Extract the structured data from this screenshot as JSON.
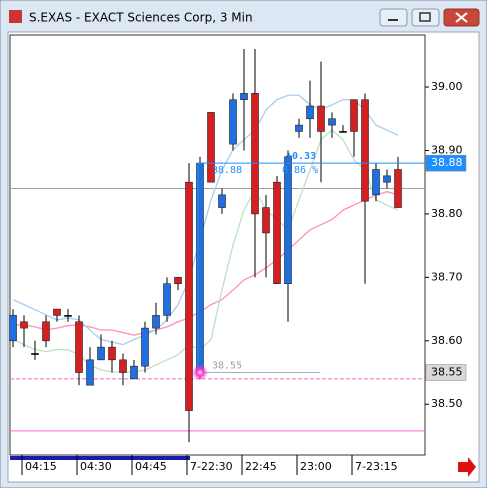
{
  "chart_data": {
    "type": "candlestick",
    "title": "S.EXAS - EXACT Sciences Corp, 3 Min",
    "categories": [
      null,
      "04:15",
      null,
      null,
      null,
      null,
      "04:30",
      null,
      null,
      null,
      null,
      "04:45",
      null,
      null,
      null,
      null,
      "7-22:30",
      null,
      null,
      null,
      null,
      "22:45",
      null,
      null,
      null,
      null,
      "23:00",
      null,
      null,
      null,
      null,
      "7-23:15",
      null,
      null,
      null,
      null
    ],
    "open": [
      38.6,
      38.63,
      38.58,
      38.63,
      38.65,
      38.64,
      38.63,
      38.53,
      38.57,
      38.59,
      38.57,
      38.54,
      38.56,
      38.62,
      38.64,
      38.7,
      38.85,
      38.55,
      38.96,
      38.81,
      38.91,
      38.98,
      38.99,
      38.81,
      38.85,
      38.69,
      38.93,
      38.95,
      38.97,
      38.94,
      38.93,
      38.98,
      38.98,
      38.83,
      38.85,
      38.87
    ],
    "high": [
      38.65,
      38.64,
      38.6,
      38.64,
      38.65,
      38.65,
      38.64,
      38.59,
      38.61,
      38.6,
      38.58,
      38.57,
      38.63,
      38.66,
      38.7,
      38.7,
      38.88,
      38.89,
      38.96,
      38.84,
      38.99,
      39.06,
      39.06,
      38.83,
      38.86,
      38.9,
      38.95,
      39.01,
      39.04,
      38.96,
      38.94,
      38.98,
      38.99,
      38.88,
      38.87,
      38.89
    ],
    "low": [
      38.59,
      38.59,
      38.57,
      38.59,
      38.63,
      38.63,
      38.53,
      38.53,
      38.57,
      38.55,
      38.53,
      38.54,
      38.55,
      38.61,
      38.63,
      38.68,
      38.44,
      38.54,
      38.85,
      38.8,
      38.9,
      38.9,
      38.7,
      38.7,
      38.69,
      38.63,
      38.92,
      38.92,
      38.85,
      38.92,
      38.93,
      38.89,
      38.69,
      38.82,
      38.84,
      38.81
    ],
    "close": [
      38.64,
      38.62,
      38.58,
      38.6,
      38.64,
      38.64,
      38.55,
      38.57,
      38.59,
      38.57,
      38.55,
      38.56,
      38.62,
      38.64,
      38.69,
      38.69,
      38.49,
      38.88,
      38.85,
      38.83,
      38.98,
      38.99,
      38.8,
      38.77,
      38.69,
      38.89,
      38.94,
      38.97,
      38.93,
      38.95,
      38.93,
      38.93,
      38.82,
      38.87,
      38.86,
      38.81
    ],
    "up_color": "#1f6fe0",
    "down_color": "#d42020",
    "flat_color": "#000000",
    "overlays": [
      {
        "color": "#ff8fb8",
        "values": [
          38.625,
          38.625,
          38.622,
          38.617,
          38.62,
          38.624,
          38.625,
          38.622,
          38.617,
          38.617,
          38.613,
          38.609,
          38.613,
          38.617,
          38.622,
          38.63,
          38.636,
          38.646,
          38.657,
          38.665,
          38.68,
          38.696,
          38.704,
          38.715,
          38.728,
          38.743,
          38.759,
          38.775,
          38.783,
          38.791,
          38.806,
          38.814,
          38.822,
          38.83,
          38.835,
          38.83
        ]
      },
      {
        "color": "#a9cdf0",
        "values": [
          38.665,
          38.657,
          38.649,
          38.641,
          38.633,
          38.636,
          38.633,
          38.617,
          38.602,
          38.598,
          38.594,
          38.602,
          38.609,
          38.617,
          38.633,
          38.657,
          38.696,
          38.759,
          38.822,
          38.869,
          38.901,
          38.917,
          38.932,
          38.964,
          38.98,
          38.987,
          38.987,
          38.972,
          38.964,
          38.972,
          38.98,
          38.98,
          38.964,
          38.94,
          38.932,
          38.924
        ]
      },
      {
        "color": "#bfe0c0",
        "values": [
          38.602,
          38.594,
          38.586,
          38.583,
          38.586,
          38.586,
          38.578,
          38.562,
          38.554,
          38.551,
          38.55,
          38.551,
          38.554,
          38.562,
          38.57,
          38.578,
          38.594,
          38.586,
          38.602,
          38.68,
          38.751,
          38.806,
          38.838,
          38.806,
          38.791,
          38.775,
          38.822,
          38.869,
          38.917,
          38.932,
          38.917,
          38.885,
          38.869,
          38.822,
          38.814,
          38.806
        ]
      }
    ],
    "hlines": [
      {
        "value": 38.84,
        "color": "#a0a0a0",
        "dashed": false
      },
      {
        "value": 38.54,
        "color": "#ff66cc",
        "dashed": true
      },
      {
        "value": 38.458,
        "color": "#ff66cc",
        "dashed": false
      }
    ],
    "measure": {
      "from": 38.55,
      "to": 38.88,
      "from_label": "38.55",
      "to_label": "38.88",
      "change": "+0.33",
      "percent": "0.86 %"
    },
    "price_tags": [
      {
        "value": 38.88,
        "label": "38.88",
        "color": "#1e8fff",
        "text_color": "#ffffff"
      },
      {
        "value": 38.55,
        "label": "38.55",
        "color": "#d8d8d8",
        "text_color": "#000000"
      }
    ],
    "ylim": [
      38.42,
      39.082
    ],
    "yticks": [
      {
        "value": 38.5,
        "label": "38.50"
      },
      {
        "value": 38.6,
        "label": "38.60"
      },
      {
        "value": 38.7,
        "label": "38.70"
      },
      {
        "value": 38.8,
        "label": "38.80"
      },
      {
        "value": 38.9,
        "label": "38.90"
      },
      {
        "value": 39.0,
        "label": "39.00"
      }
    ]
  }
}
